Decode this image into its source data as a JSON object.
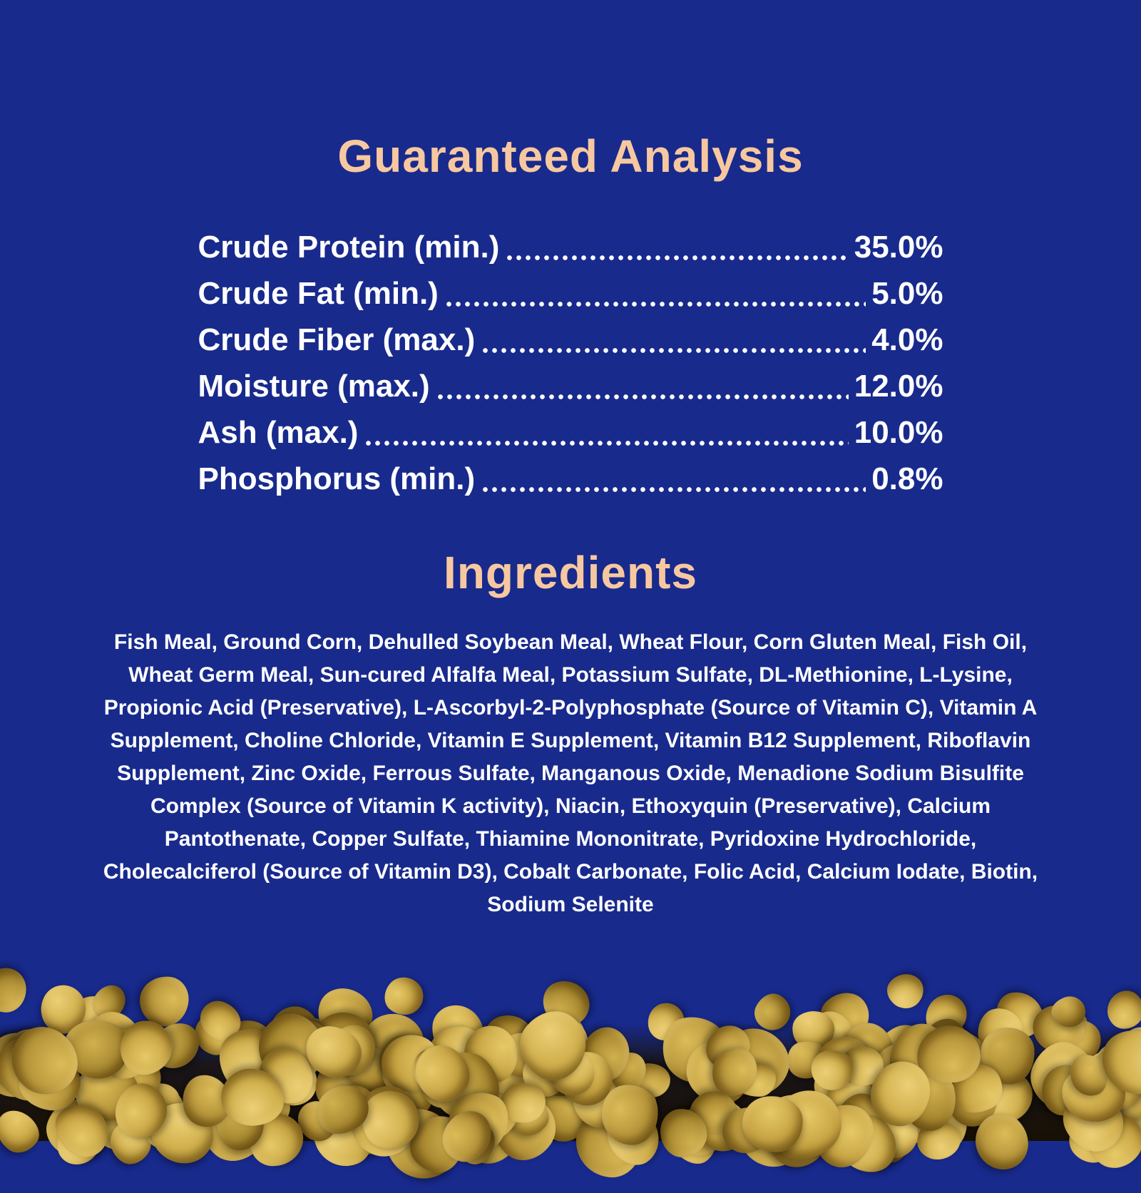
{
  "colors": {
    "background": "#182a8c",
    "heading": "#f7c8a0",
    "text": "#ffffff",
    "pellet_palettes": [
      [
        "#e6c968",
        "#c6a342",
        "#8a6c20"
      ],
      [
        "#dcbb58",
        "#b6953a",
        "#7e621c"
      ],
      [
        "#d1b04f",
        "#a98a31",
        "#735818"
      ],
      [
        "#ecd077",
        "#cfae4b",
        "#967826"
      ]
    ]
  },
  "analysis": {
    "title": "Guaranteed Analysis",
    "rows": [
      {
        "label": "Crude Protein (min.)",
        "value": "35.0%"
      },
      {
        "label": "Crude Fat (min.)",
        "value": "5.0%"
      },
      {
        "label": "Crude Fiber (max.)",
        "value": "4.0%"
      },
      {
        "label": "Moisture (max.)",
        "value": "12.0%"
      },
      {
        "label": "Ash (max.)",
        "value": "10.0%"
      },
      {
        "label": "Phosphorus (min.)",
        "value": "0.8%"
      }
    ]
  },
  "ingredients": {
    "title": "Ingredients",
    "text": "Fish Meal, Ground Corn, Dehulled Soybean Meal, Wheat Flour, Corn Gluten Meal, Fish Oil, Wheat Germ Meal, Sun-cured Alfalfa Meal, Potassium Sulfate, DL-Methionine, L-Lysine, Propionic Acid (Preservative), L-Ascorbyl-2-Polyphosphate (Source of Vitamin C), Vitamin A Supplement, Choline Chloride, Vitamin E Supplement, Vitamin B12 Supplement, Riboflavin Supplement, Zinc Oxide, Ferrous Sulfate, Manganous Oxide, Menadione Sodium Bisulfite Complex (Source of Vitamin K activity), Niacin, Ethoxyquin (Preservative), Calcium Pantothenate, Copper Sulfate, Thiamine Mononitrate, Pyridoxine Hydrochloride, Cholecalciferol (Source of Vitamin D3), Cobalt Carbonate, Folic Acid, Calcium Iodate, Biotin, Sodium Selenite"
  }
}
